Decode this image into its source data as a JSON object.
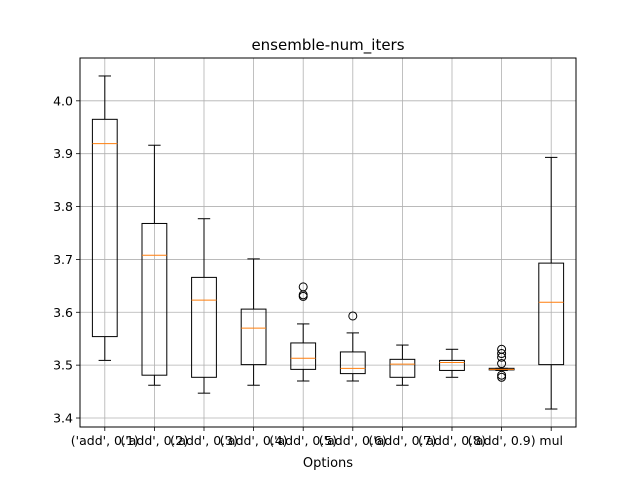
{
  "chart_data": {
    "type": "box",
    "title": "ensemble-num_iters",
    "xlabel": "Options",
    "ylabel": "",
    "ylim": [
      3.383,
      4.081
    ],
    "yticks": [
      3.4,
      3.5,
      3.6,
      3.7,
      3.8,
      3.9,
      4.0
    ],
    "ytick_labels": [
      "3.4",
      "3.5",
      "3.6",
      "3.7",
      "3.8",
      "3.9",
      "4.0"
    ],
    "grid": true,
    "categories": [
      "('add', 0.1)",
      "('add', 0.2)",
      "('add', 0.3)",
      "('add', 0.4)",
      "('add', 0.5)",
      "('add', 0.6)",
      "('add', 0.7)",
      "('add', 0.8)",
      "('add', 0.9)",
      "mul"
    ],
    "boxes": [
      {
        "whisker_low": 3.509,
        "q1": 3.554,
        "median": 3.919,
        "q3": 3.965,
        "whisker_high": 4.047,
        "outliers": []
      },
      {
        "whisker_low": 3.462,
        "q1": 3.481,
        "median": 3.708,
        "q3": 3.768,
        "whisker_high": 3.916,
        "outliers": []
      },
      {
        "whisker_low": 3.447,
        "q1": 3.477,
        "median": 3.623,
        "q3": 3.666,
        "whisker_high": 3.777,
        "outliers": []
      },
      {
        "whisker_low": 3.462,
        "q1": 3.501,
        "median": 3.57,
        "q3": 3.606,
        "whisker_high": 3.701,
        "outliers": []
      },
      {
        "whisker_low": 3.47,
        "q1": 3.492,
        "median": 3.513,
        "q3": 3.542,
        "whisker_high": 3.578,
        "outliers": [
          3.63,
          3.633,
          3.648
        ]
      },
      {
        "whisker_low": 3.47,
        "q1": 3.484,
        "median": 3.494,
        "q3": 3.525,
        "whisker_high": 3.561,
        "outliers": [
          3.593
        ]
      },
      {
        "whisker_low": 3.462,
        "q1": 3.477,
        "median": 3.502,
        "q3": 3.511,
        "whisker_high": 3.538,
        "outliers": []
      },
      {
        "whisker_low": 3.477,
        "q1": 3.49,
        "median": 3.505,
        "q3": 3.509,
        "whisker_high": 3.53,
        "outliers": []
      },
      {
        "whisker_low": 3.49,
        "q1": 3.491,
        "median": 3.492,
        "q3": 3.494,
        "whisker_high": 3.494,
        "outliers": [
          3.477,
          3.481,
          3.503,
          3.515,
          3.522,
          3.53
        ]
      },
      {
        "whisker_low": 3.417,
        "q1": 3.501,
        "median": 3.619,
        "q3": 3.693,
        "whisker_high": 3.893,
        "outliers": []
      }
    ],
    "colors": {
      "box": "#000000",
      "median": "#ff7f0e",
      "grid": "#b0b0b0"
    }
  }
}
